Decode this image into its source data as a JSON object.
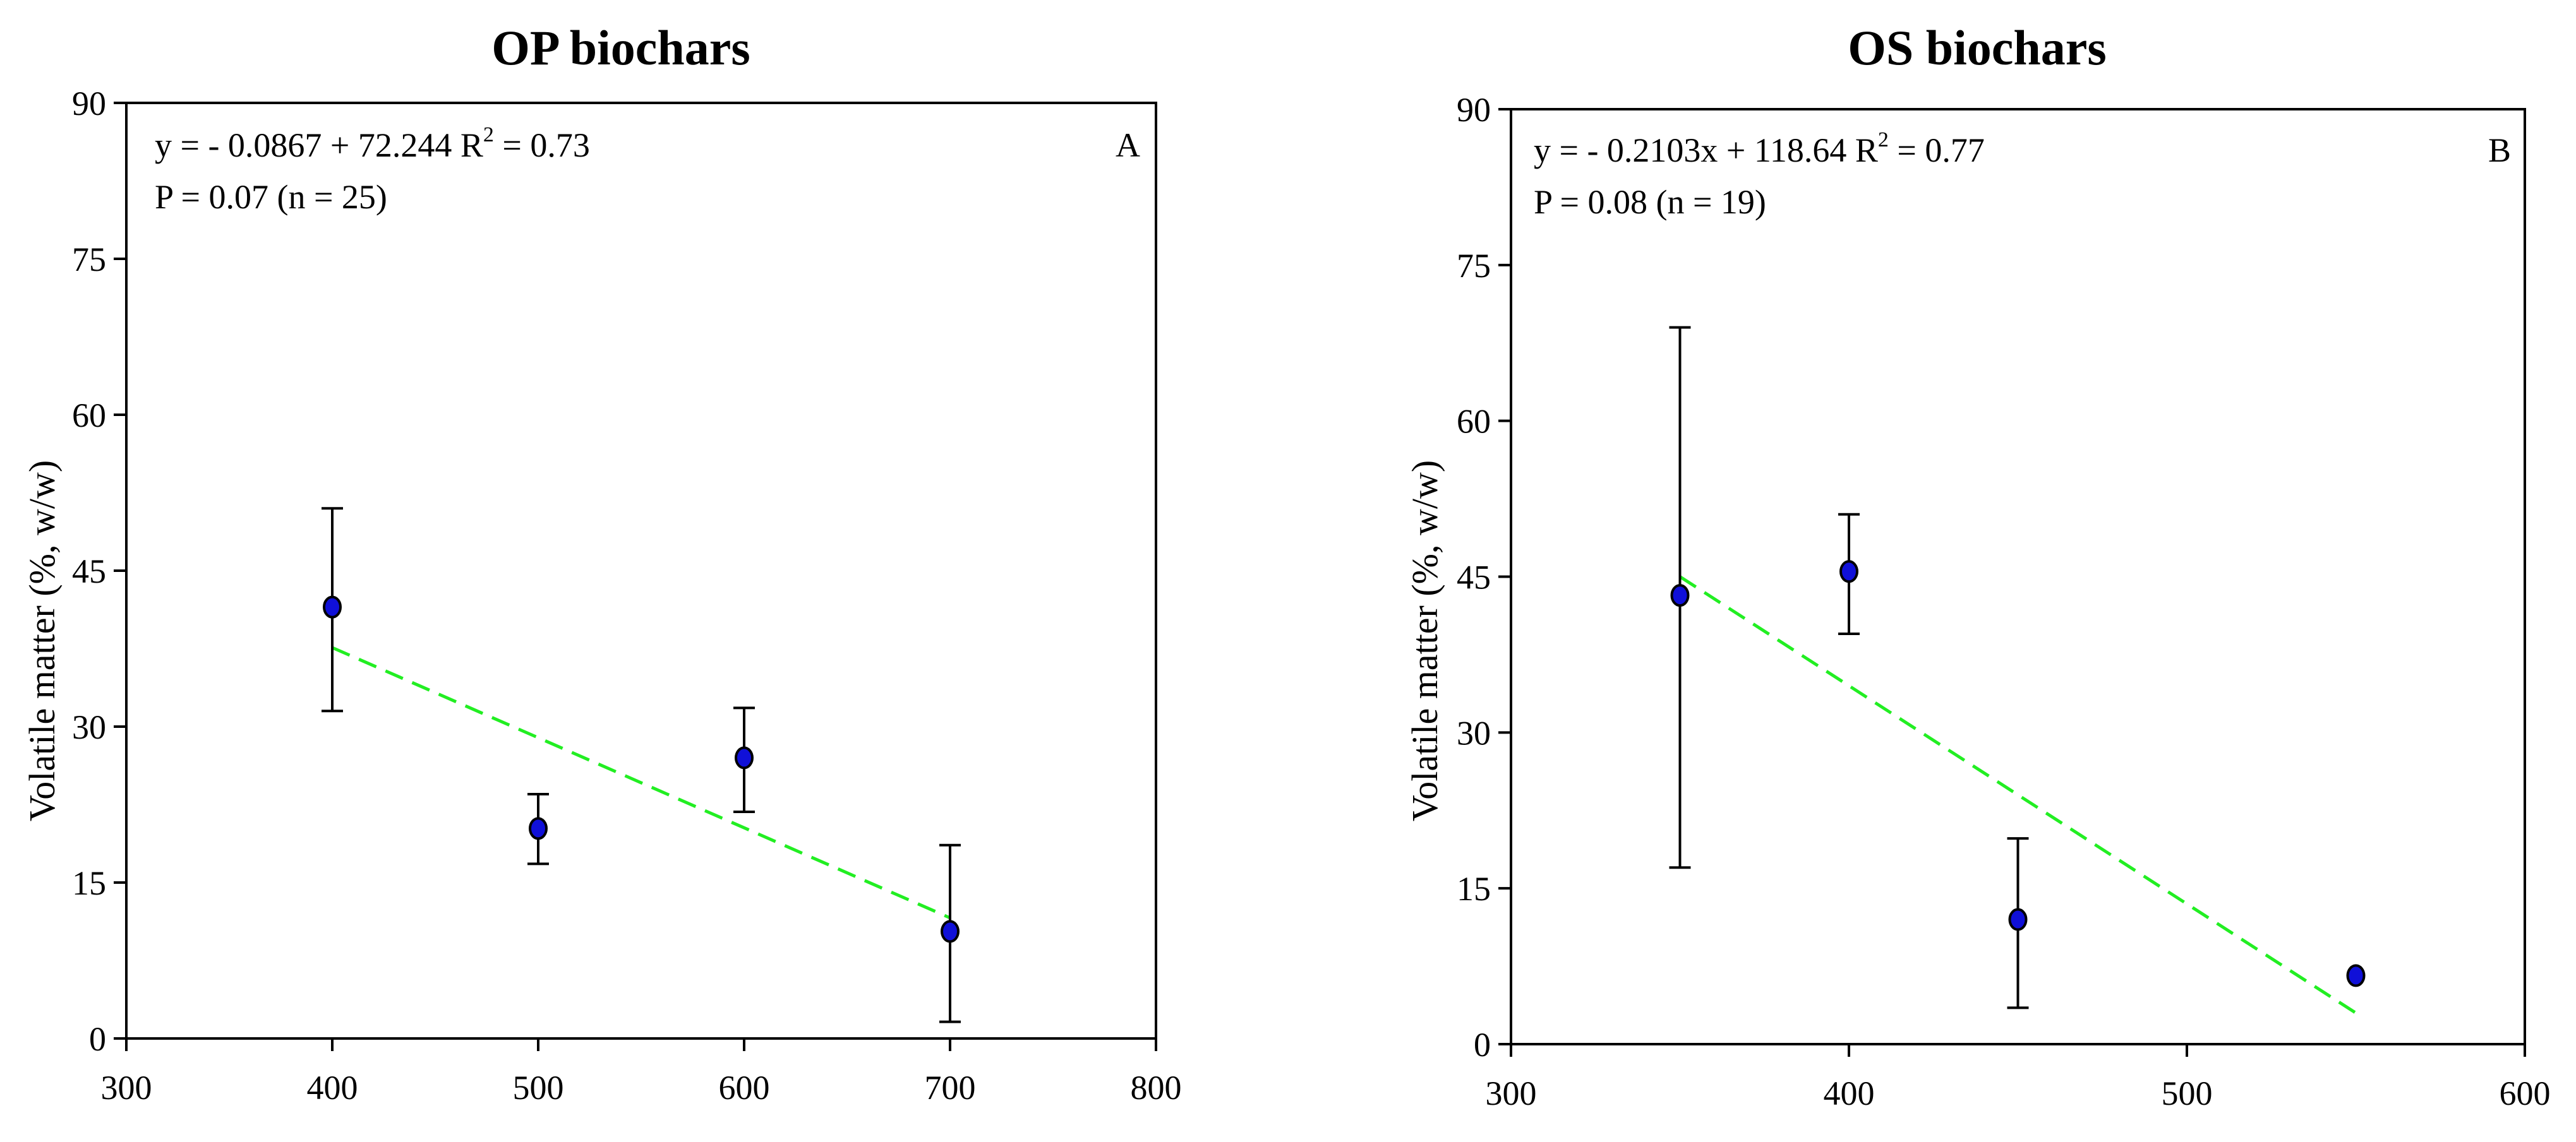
{
  "chart_data": [
    {
      "type": "scatter",
      "title": "OP biochars",
      "panel_label": "A",
      "ylabel": "Volatile matter (%, w/w)",
      "xlabel": "",
      "xlim": [
        300,
        800
      ],
      "ylim": [
        0,
        90
      ],
      "xticks": [
        "300",
        "400",
        "500",
        "600",
        "700",
        "800"
      ],
      "yticks": [
        "0",
        "15",
        "30",
        "45",
        "60",
        "75",
        "90"
      ],
      "equation": {
        "lhs": "y = - 0.0867 + 72.244 R",
        "exp": "2",
        "rhs": " = 0.73"
      },
      "stats": "P = 0.07 (n = 25)",
      "points": [
        {
          "x": 400,
          "y": 41.5,
          "err_low": 31.5,
          "err_high": 51.0
        },
        {
          "x": 500,
          "y": 20.2,
          "err_low": 16.8,
          "err_high": 23.5
        },
        {
          "x": 600,
          "y": 27.0,
          "err_low": 21.8,
          "err_high": 31.8
        },
        {
          "x": 700,
          "y": 10.3,
          "err_low": 1.6,
          "err_high": 18.6
        }
      ],
      "trendline": {
        "x": [
          400,
          700
        ],
        "y": [
          37.6,
          11.6
        ]
      },
      "colors": {
        "marker": "#1010d8",
        "trend": "#22ee22"
      }
    },
    {
      "type": "scatter",
      "title": "OS biochars",
      "panel_label": "B",
      "ylabel": "Volatile matter (%, w/w)",
      "xlabel": "",
      "xlim": [
        300,
        600
      ],
      "ylim": [
        0,
        90
      ],
      "xticks": [
        "300",
        "400",
        "500",
        "600"
      ],
      "yticks": [
        "0",
        "15",
        "30",
        "45",
        "60",
        "75",
        "90"
      ],
      "equation": {
        "lhs": "y = - 0.2103x + 118.64 R",
        "exp": "2",
        "rhs": " = 0.77"
      },
      "stats": "P = 0.08 (n = 19)",
      "points": [
        {
          "x": 350,
          "y": 43.2,
          "err_low": 17.0,
          "err_high": 69.0
        },
        {
          "x": 400,
          "y": 45.5,
          "err_low": 39.5,
          "err_high": 51.0
        },
        {
          "x": 450,
          "y": 12.0,
          "err_low": 3.5,
          "err_high": 19.8
        },
        {
          "x": 550,
          "y": 6.6,
          "err_low": null,
          "err_high": null
        }
      ],
      "trendline": {
        "x": [
          350,
          550
        ],
        "y": [
          45.0,
          3.0
        ]
      },
      "colors": {
        "marker": "#1010d8",
        "trend": "#22ee22"
      }
    }
  ]
}
